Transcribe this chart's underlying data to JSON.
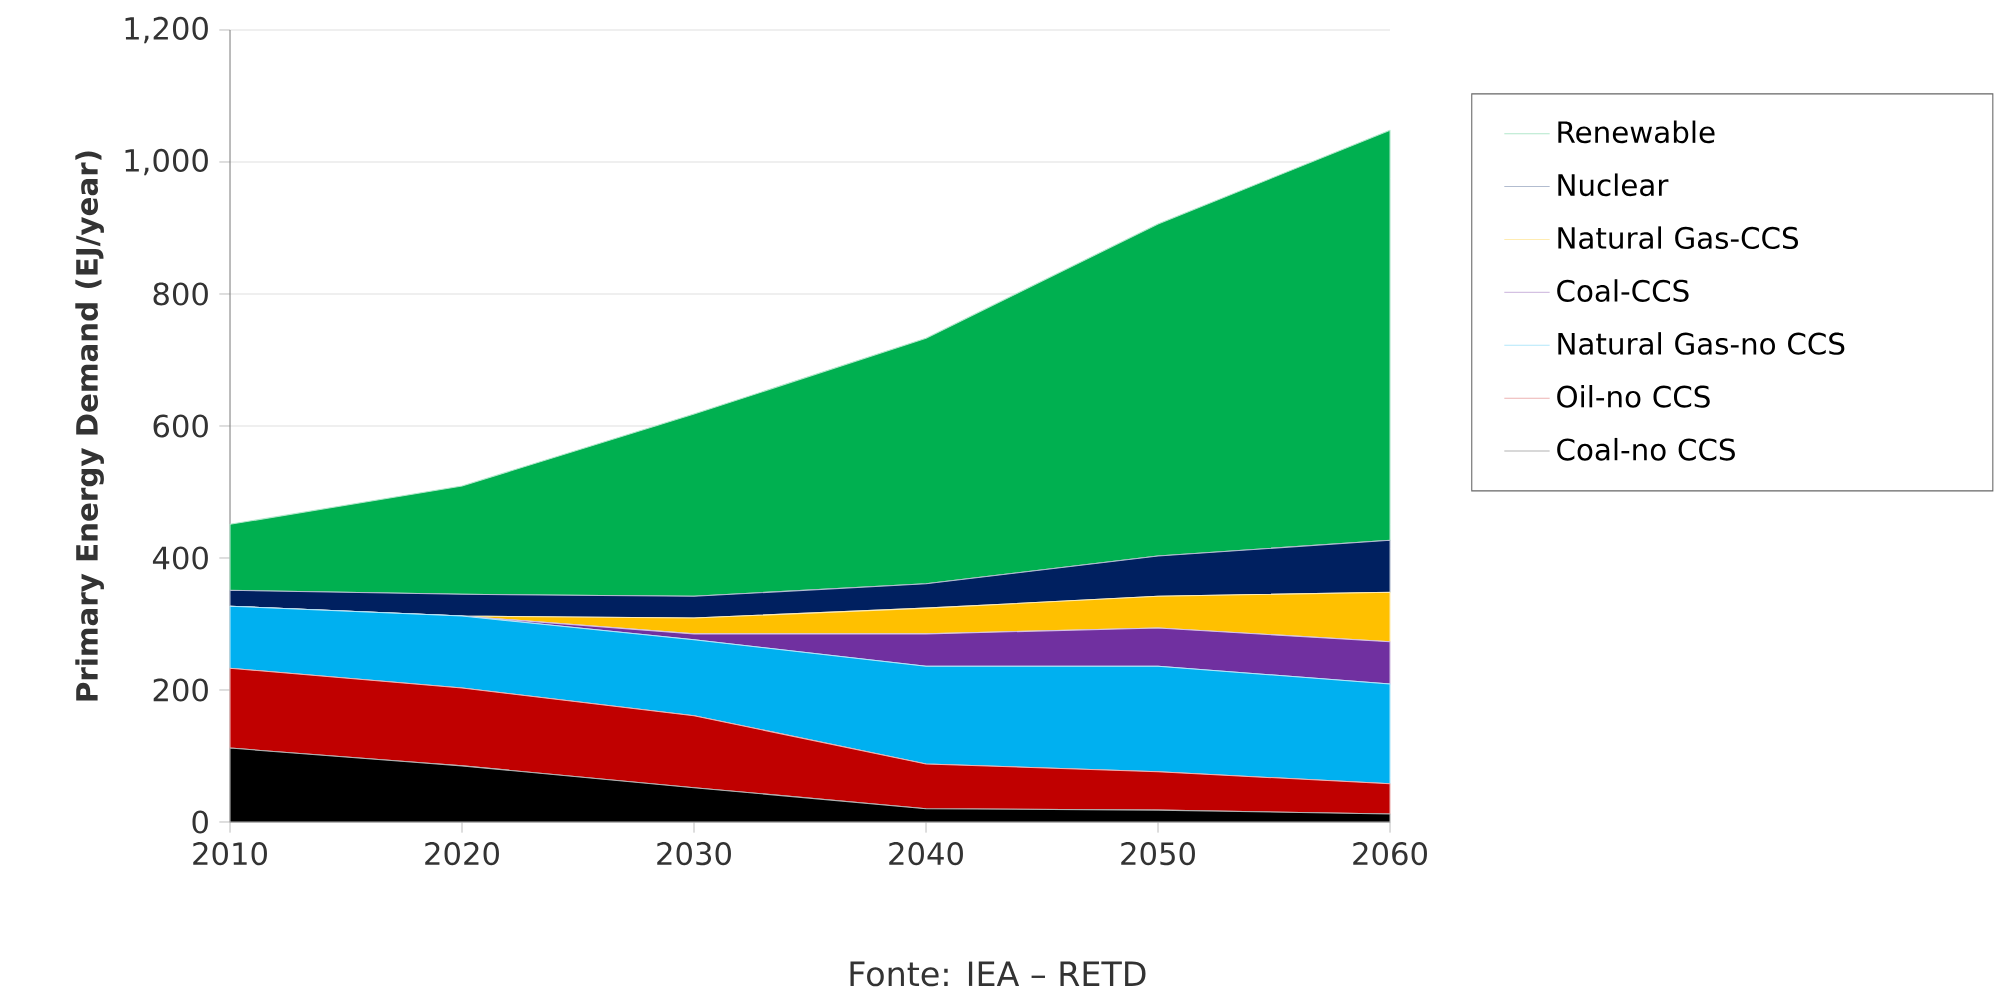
{
  "chart_data": {
    "type": "area",
    "stacked": true,
    "x": [
      2010,
      2020,
      2030,
      2040,
      2050,
      2060
    ],
    "ylabel": "Primary Energy Demand (EJ/year)",
    "xlim": [
      2010,
      2060
    ],
    "xticks": [
      2010,
      2020,
      2030,
      2040,
      2050,
      2060
    ],
    "ylim": [
      0,
      1200
    ],
    "yticks": [
      0,
      200,
      400,
      600,
      800,
      {
        "value": 1000,
        "label": "1,000"
      },
      {
        "value": 1200,
        "label": "1,200"
      }
    ],
    "grid": "y",
    "legend": "right",
    "annotations": [
      "Fonte: IEA – RETD"
    ],
    "series": [
      {
        "name": "Coal-no CCS",
        "color": "#000000",
        "values": [
          112,
          85,
          52,
          20,
          18,
          12
        ]
      },
      {
        "name": "Oil-no CCS",
        "color": "#c00000",
        "values": [
          121,
          118,
          109,
          68,
          58,
          46
        ]
      },
      {
        "name": "Natural Gas-no CCS",
        "color": "#00b0f0",
        "values": [
          94,
          109,
          115,
          148,
          160,
          151
        ]
      },
      {
        "name": "Coal-CCS",
        "color": "#7030a0",
        "values": [
          0,
          0,
          9,
          49,
          58,
          64
        ]
      },
      {
        "name": "Natural Gas-CCS",
        "color": "#ffc000",
        "values": [
          0,
          0,
          24,
          39,
          48,
          75
        ]
      },
      {
        "name": "Nuclear",
        "color": "#002060",
        "values": [
          24,
          33,
          33,
          37,
          61,
          79
        ]
      },
      {
        "name": "Renewable",
        "color": "#00b050",
        "values": [
          100,
          164,
          276,
          372,
          503,
          621
        ]
      }
    ]
  }
}
